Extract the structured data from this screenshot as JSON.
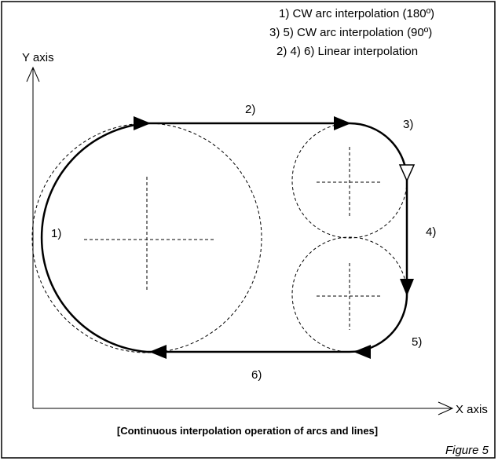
{
  "legend": [
    "1) CW arc interpolation (180º)",
    "3) 5) CW arc interpolation (90º)",
    "2) 4) 6) Linear interpolation"
  ],
  "axes": {
    "y": "Y axis",
    "x": "X axis"
  },
  "segments": [
    "1)",
    "2)",
    "3)",
    "4)",
    "5)",
    "6)"
  ],
  "caption": "[Continuous interpolation operation of arcs and lines]",
  "figure": "Figure 5"
}
